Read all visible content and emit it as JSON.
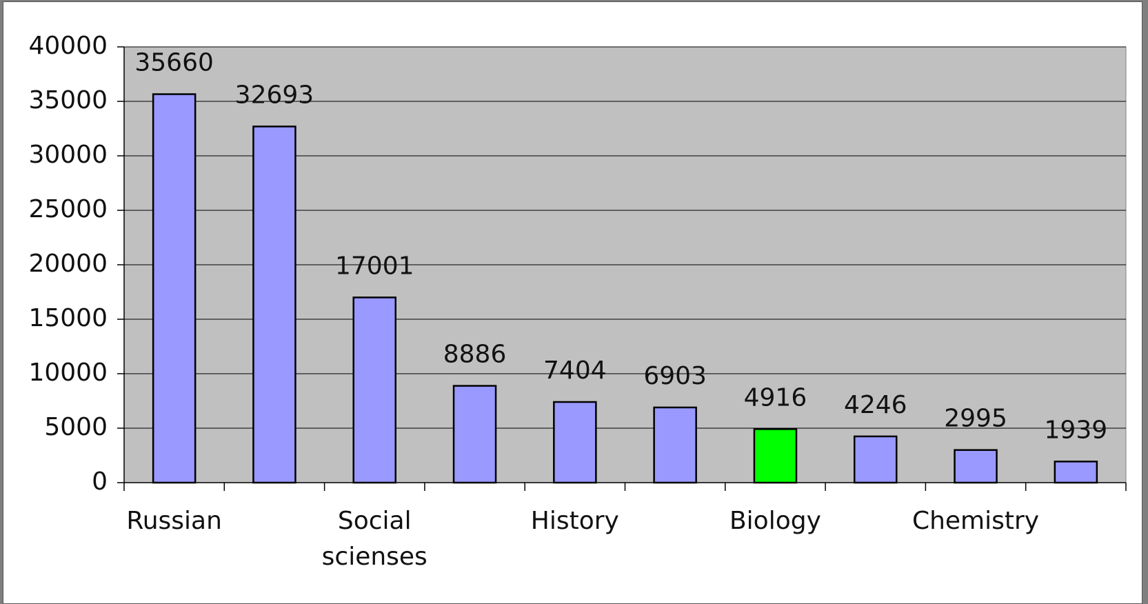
{
  "chart_data": {
    "type": "bar",
    "categories": [
      "Russian",
      null,
      "Social scienses",
      null,
      "History",
      null,
      "Biology",
      null,
      "Chemistry",
      null
    ],
    "values": [
      35660,
      32693,
      17001,
      8886,
      7404,
      6903,
      4916,
      4246,
      2995,
      1939
    ],
    "colors": [
      "#9999ff",
      "#9999ff",
      "#9999ff",
      "#9999ff",
      "#9999ff",
      "#9999ff",
      "#00ff00",
      "#9999ff",
      "#9999ff",
      "#9999ff"
    ],
    "ylim": [
      0,
      40000
    ],
    "yticks": [
      0,
      5000,
      10000,
      15000,
      20000,
      25000,
      30000,
      35000,
      40000
    ],
    "grid": true
  }
}
